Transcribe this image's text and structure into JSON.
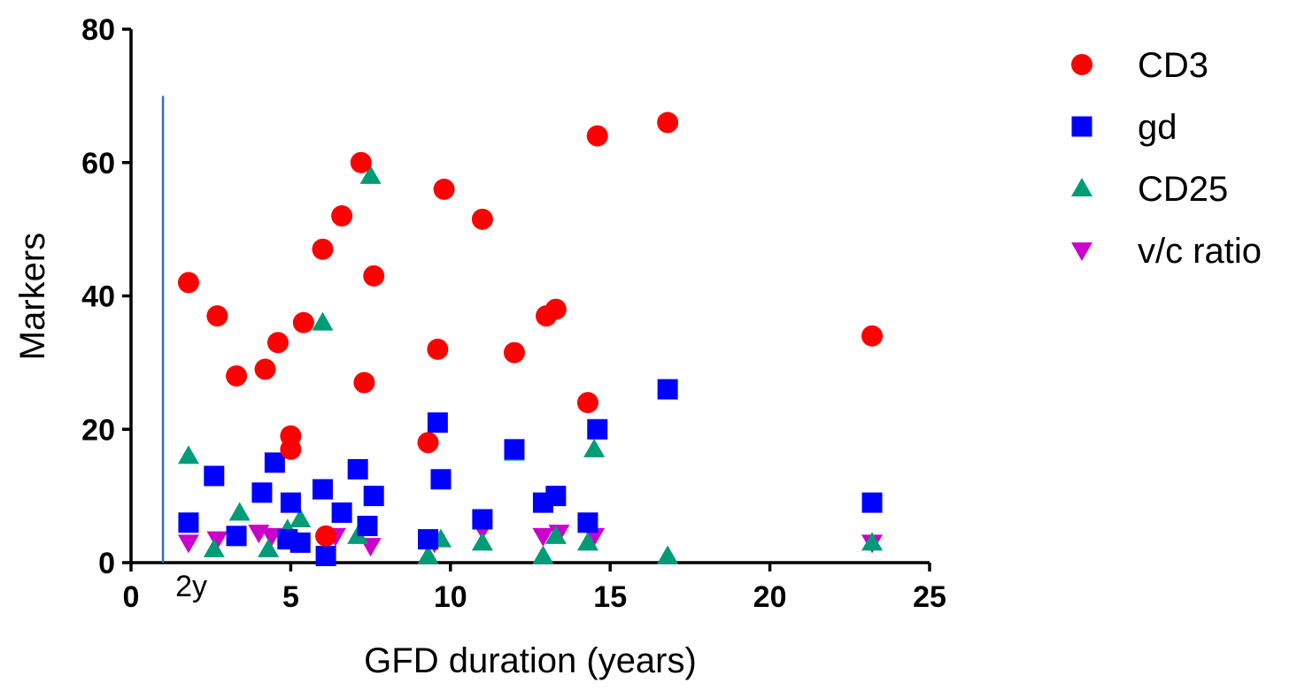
{
  "chart_data": {
    "type": "scatter",
    "title": "",
    "xlabel": "GFD duration (years)",
    "ylabel": "Markers",
    "xlim": [
      0,
      25
    ],
    "ylim": [
      0,
      80
    ],
    "xticks": [
      0,
      5,
      10,
      15,
      20,
      25
    ],
    "yticks": [
      0,
      20,
      40,
      60,
      80
    ],
    "grid": false,
    "legend_position": "top-right",
    "annotation": {
      "x": 1,
      "y_max": 70,
      "label": "2y"
    },
    "series": [
      {
        "name": "CD3",
        "marker": "circle",
        "color": "#ff0000",
        "points": [
          [
            1.8,
            42
          ],
          [
            2.7,
            37
          ],
          [
            3.3,
            28
          ],
          [
            4.2,
            29
          ],
          [
            4.6,
            33
          ],
          [
            5.0,
            19
          ],
          [
            5.0,
            17
          ],
          [
            5.4,
            36
          ],
          [
            6.0,
            47
          ],
          [
            6.1,
            4
          ],
          [
            6.6,
            52
          ],
          [
            7.2,
            60
          ],
          [
            7.3,
            27
          ],
          [
            7.6,
            43
          ],
          [
            9.3,
            18
          ],
          [
            9.6,
            32
          ],
          [
            9.8,
            56
          ],
          [
            11.0,
            51.5
          ],
          [
            12.0,
            31.5
          ],
          [
            13.0,
            37
          ],
          [
            13.3,
            38
          ],
          [
            14.3,
            24
          ],
          [
            14.6,
            64
          ],
          [
            16.8,
            66
          ],
          [
            23.2,
            34
          ]
        ]
      },
      {
        "name": "gd",
        "marker": "square",
        "color": "#0000ff",
        "points": [
          [
            1.8,
            6
          ],
          [
            2.6,
            13
          ],
          [
            3.3,
            4
          ],
          [
            4.1,
            10.5
          ],
          [
            4.5,
            15
          ],
          [
            4.9,
            3.5
          ],
          [
            5.0,
            9
          ],
          [
            5.3,
            3
          ],
          [
            6.0,
            11
          ],
          [
            6.1,
            1
          ],
          [
            6.6,
            7.5
          ],
          [
            7.1,
            14
          ],
          [
            7.4,
            5.5
          ],
          [
            7.6,
            10
          ],
          [
            9.3,
            3.5
          ],
          [
            9.6,
            21
          ],
          [
            9.7,
            12.5
          ],
          [
            11.0,
            6.5
          ],
          [
            12.0,
            17
          ],
          [
            12.9,
            9
          ],
          [
            13.3,
            10
          ],
          [
            14.3,
            6
          ],
          [
            14.6,
            20
          ],
          [
            16.8,
            26
          ],
          [
            23.2,
            9
          ]
        ]
      },
      {
        "name": "CD25",
        "marker": "triangle-up",
        "color": "#009b77",
        "points": [
          [
            1.8,
            16
          ],
          [
            2.6,
            2
          ],
          [
            3.4,
            7.5
          ],
          [
            4.3,
            2
          ],
          [
            4.9,
            5
          ],
          [
            5.3,
            6.5
          ],
          [
            6.0,
            36
          ],
          [
            7.1,
            4
          ],
          [
            7.5,
            58
          ],
          [
            9.3,
            1
          ],
          [
            9.7,
            3.5
          ],
          [
            11.0,
            3
          ],
          [
            12.0,
            16.5
          ],
          [
            12.9,
            1
          ],
          [
            13.3,
            4
          ],
          [
            14.3,
            3
          ],
          [
            14.5,
            17
          ],
          [
            16.8,
            1
          ],
          [
            23.2,
            3
          ]
        ]
      },
      {
        "name": "v/c ratio",
        "marker": "triangle-down",
        "color": "#cc00cc",
        "points": [
          [
            1.8,
            3
          ],
          [
            2.7,
            3.5
          ],
          [
            4.0,
            4.5
          ],
          [
            4.4,
            4
          ],
          [
            5.2,
            3
          ],
          [
            6.4,
            4
          ],
          [
            7.5,
            2.5
          ],
          [
            9.5,
            3
          ],
          [
            11.0,
            5
          ],
          [
            12.9,
            4
          ],
          [
            13.4,
            4.5
          ],
          [
            14.5,
            4
          ],
          [
            23.2,
            3
          ]
        ]
      }
    ]
  }
}
